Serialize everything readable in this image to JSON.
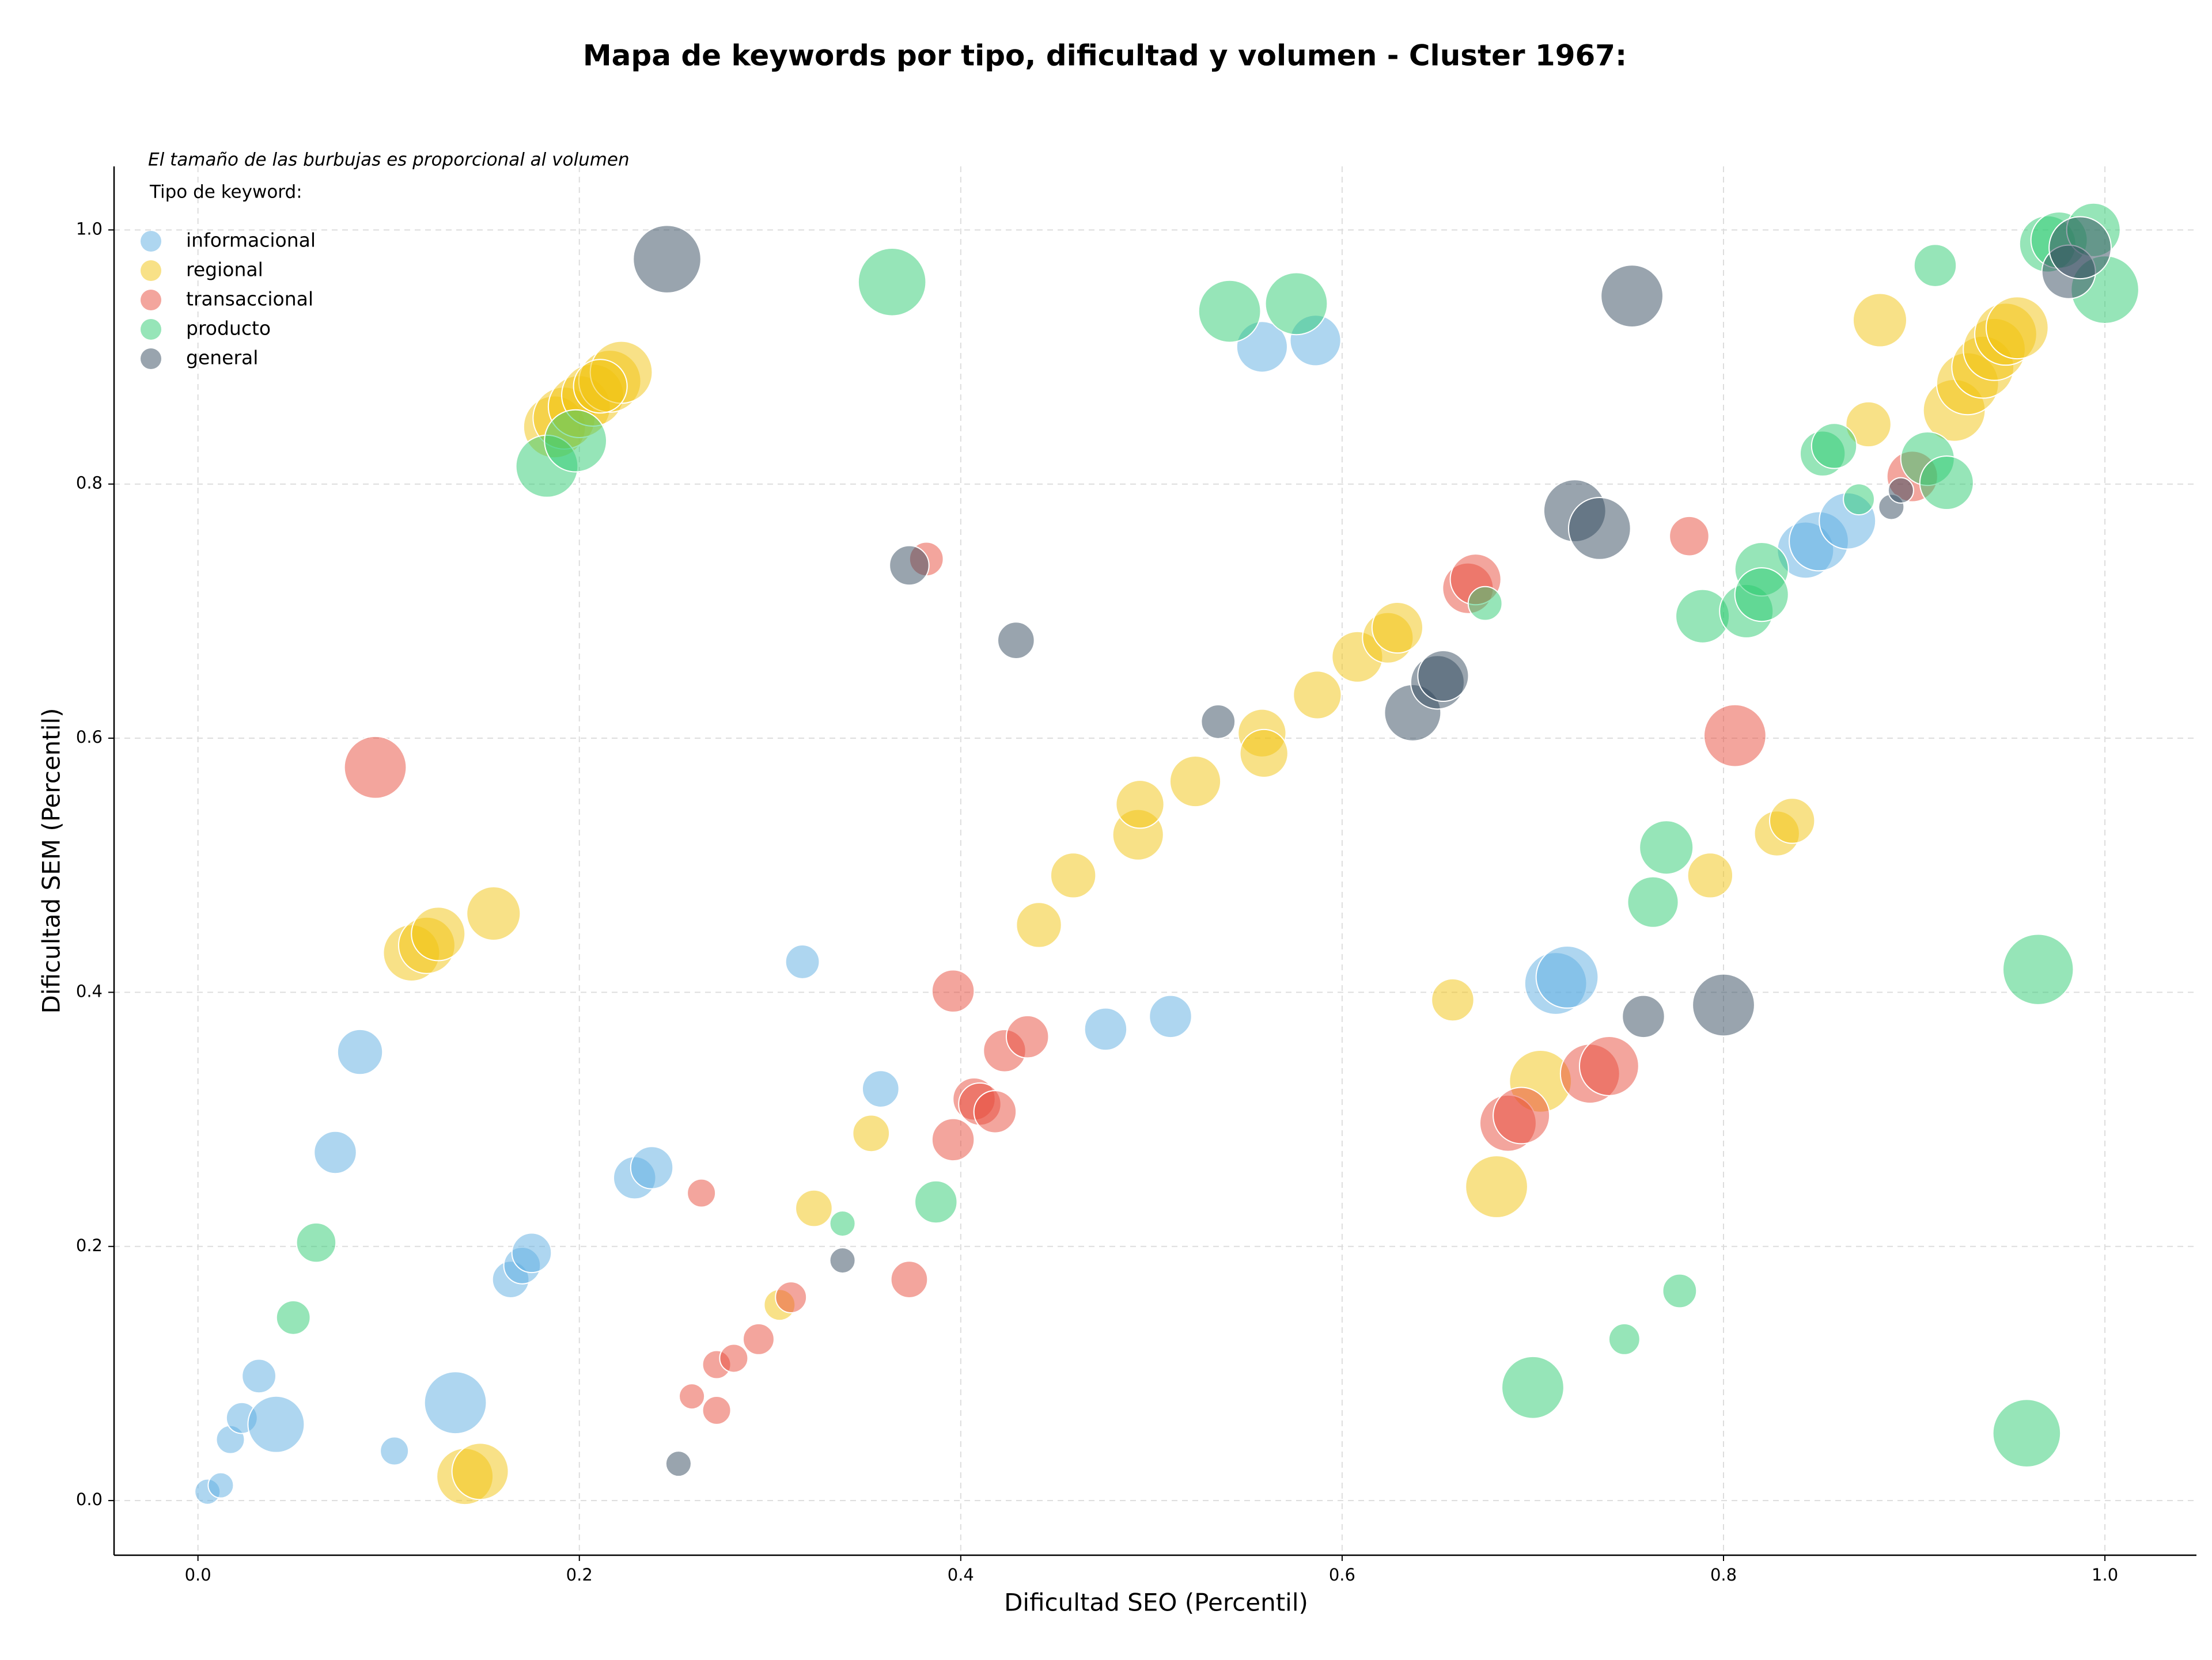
{
  "chart_data": {
    "type": "scatter",
    "title": "Mapa de keywords por tipo, dificultad y volumen - Cluster 1967:",
    "note": "El tamaño de las burbujas es proporcional al volumen",
    "legend_title": "Tipo de keyword:",
    "legend": "upper left",
    "grid": true,
    "xlabel": "Dificultad SEO (Percentil)",
    "ylabel": "Dificultad SEM (Percentil)",
    "xlim": [
      -0.044,
      1.048
    ],
    "ylim": [
      -0.043,
      1.05
    ],
    "xticks": [
      {
        "value": 0,
        "label": "0.0"
      },
      0.2,
      0.4,
      0.6,
      0.8,
      {
        "value": 1,
        "label": "1.0"
      }
    ],
    "yticks": [
      {
        "value": 0,
        "label": "0.0"
      },
      0.2,
      0.4,
      0.6,
      0.8,
      {
        "value": 1,
        "label": "1.0"
      }
    ],
    "series": [
      {
        "name": "informacional",
        "color": "#5dade2",
        "x": [
          0.005,
          0.012,
          0.017,
          0.023,
          0.041,
          0.032,
          0.085,
          0.072,
          0.103,
          0.135,
          0.164,
          0.17,
          0.175,
          0.229,
          0.238,
          0.317,
          0.358,
          0.476,
          0.51,
          0.712,
          0.718,
          0.558,
          0.586,
          0.843,
          0.85,
          0.865
        ],
        "y": [
          0.007,
          0.012,
          0.048,
          0.065,
          0.06,
          0.098,
          0.353,
          0.274,
          0.039,
          0.077,
          0.174,
          0.185,
          0.195,
          0.254,
          0.262,
          0.424,
          0.324,
          0.371,
          0.381,
          0.407,
          0.412,
          0.908,
          0.913,
          0.748,
          0.755,
          0.771
        ],
        "sizes": [
          81,
          81,
          100,
          121,
          400,
          144,
          256,
          225,
          100,
          484,
          169,
          169,
          196,
          225,
          225,
          144,
          169,
          225,
          225,
          484,
          484,
          324,
          324,
          400,
          441,
          400
        ]
      },
      {
        "name": "regional",
        "color": "#f1c40f",
        "x": [
          0.14,
          0.148,
          0.112,
          0.12,
          0.126,
          0.155,
          0.187,
          0.192,
          0.2,
          0.207,
          0.216,
          0.222,
          0.211,
          0.305,
          0.323,
          0.353,
          0.441,
          0.459,
          0.493,
          0.494,
          0.523,
          0.558,
          0.559,
          0.587,
          0.608,
          0.624,
          0.629,
          0.658,
          0.681,
          0.704,
          0.793,
          0.828,
          0.836,
          0.876,
          0.882,
          0.921,
          0.928,
          0.936,
          0.942,
          0.948,
          0.954
        ],
        "y": [
          0.019,
          0.023,
          0.431,
          0.437,
          0.446,
          0.462,
          0.845,
          0.852,
          0.861,
          0.87,
          0.881,
          0.888,
          0.877,
          0.154,
          0.23,
          0.289,
          0.453,
          0.492,
          0.524,
          0.548,
          0.566,
          0.604,
          0.588,
          0.634,
          0.664,
          0.679,
          0.687,
          0.394,
          0.247,
          0.33,
          0.492,
          0.525,
          0.535,
          0.847,
          0.929,
          0.858,
          0.879,
          0.892,
          0.906,
          0.918,
          0.923
        ],
        "sizes": [
          400,
          400,
          400,
          400,
          361,
          361,
          484,
          484,
          484,
          484,
          484,
          484,
          361,
          121,
          169,
          169,
          256,
          256,
          324,
          289,
          324,
          289,
          289,
          289,
          324,
          324,
          324,
          225,
          484,
          484,
          256,
          256,
          256,
          256,
          361,
          484,
          484,
          484,
          484,
          484,
          484
        ]
      },
      {
        "name": "transaccional",
        "color": "#e74c3c",
        "x": [
          0.093,
          0.259,
          0.272,
          0.272,
          0.281,
          0.294,
          0.311,
          0.264,
          0.373,
          0.382,
          0.396,
          0.396,
          0.407,
          0.41,
          0.418,
          0.423,
          0.435,
          0.666,
          0.67,
          0.687,
          0.694,
          0.73,
          0.74,
          0.782,
          0.806,
          0.899
        ],
        "y": [
          0.577,
          0.082,
          0.071,
          0.107,
          0.112,
          0.127,
          0.16,
          0.242,
          0.174,
          0.741,
          0.284,
          0.401,
          0.316,
          0.312,
          0.306,
          0.354,
          0.365,
          0.718,
          0.725,
          0.297,
          0.303,
          0.336,
          0.342,
          0.759,
          0.602,
          0.806
        ],
        "sizes": [
          484,
          81,
          100,
          100,
          100,
          121,
          121,
          100,
          169,
          144,
          225,
          225,
          225,
          225,
          225,
          225,
          225,
          324,
          324,
          400,
          400,
          441,
          441,
          196,
          484,
          324
        ]
      },
      {
        "name": "producto",
        "color": "#2ecc71",
        "x": [
          0.05,
          0.062,
          0.183,
          0.198,
          0.338,
          0.364,
          0.387,
          0.541,
          0.576,
          0.675,
          0.7,
          0.748,
          0.763,
          0.77,
          0.777,
          0.789,
          0.812,
          0.82,
          0.82,
          0.852,
          0.858,
          0.871,
          0.907,
          0.917,
          0.911,
          0.959,
          0.965,
          0.97,
          0.976,
          0.994,
          1.0
        ],
        "y": [
          0.144,
          0.203,
          0.814,
          0.834,
          0.218,
          0.959,
          0.235,
          0.936,
          0.942,
          0.706,
          0.089,
          0.127,
          0.471,
          0.514,
          0.165,
          0.696,
          0.7,
          0.733,
          0.713,
          0.824,
          0.83,
          0.788,
          0.82,
          0.801,
          0.972,
          0.053,
          0.418,
          0.989,
          0.992,
          1.0,
          0.953
        ],
        "sizes": [
          144,
          196,
          484,
          484,
          81,
          576,
          225,
          484,
          484,
          144,
          484,
          121,
          324,
          361,
          144,
          361,
          361,
          361,
          361,
          256,
          256,
          121,
          361,
          361,
          225,
          576,
          625,
          400,
          400,
          361,
          576
        ]
      },
      {
        "name": "general",
        "color": "#34495e",
        "x": [
          0.246,
          0.252,
          0.338,
          0.373,
          0.429,
          0.535,
          0.637,
          0.65,
          0.653,
          0.722,
          0.735,
          0.752,
          0.758,
          0.8,
          0.888,
          0.893,
          0.981,
          0.987
        ],
        "y": [
          0.977,
          0.029,
          0.189,
          0.736,
          0.677,
          0.613,
          0.62,
          0.644,
          0.649,
          0.779,
          0.765,
          0.948,
          0.381,
          0.39,
          0.782,
          0.795,
          0.967,
          0.986
        ],
        "sizes": [
          576,
          81,
          81,
          196,
          169,
          144,
          400,
          361,
          324,
          484,
          484,
          484,
          225,
          484,
          81,
          81,
          361,
          484
        ]
      }
    ]
  }
}
